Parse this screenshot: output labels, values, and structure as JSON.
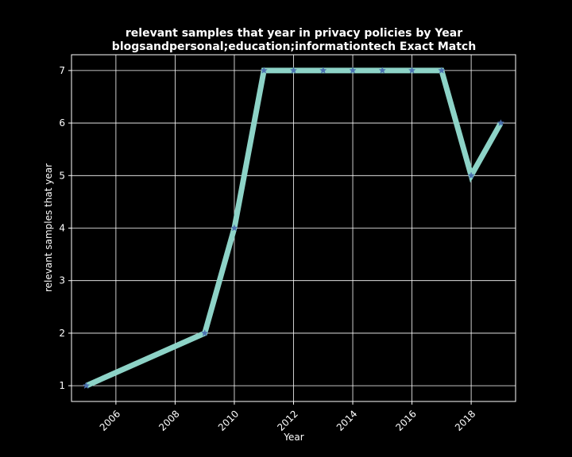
{
  "chart_data": {
    "type": "line",
    "title": "relevant samples that year in privacy policies by Year",
    "subtitle": "blogsandpersonal;education;informationtech Exact Match",
    "xlabel": "Year",
    "ylabel": "relevant samples that year",
    "xlim": [
      2004.5,
      2019.5
    ],
    "ylim": [
      0.7,
      7.3
    ],
    "xticks": [
      2006,
      2008,
      2010,
      2012,
      2014,
      2016,
      2018
    ],
    "yticks": [
      1,
      2,
      3,
      4,
      5,
      6,
      7
    ],
    "grid": true,
    "x": [
      2005,
      2009,
      2010,
      2011,
      2012,
      2013,
      2014,
      2015,
      2016,
      2017,
      2018,
      2019
    ],
    "series": [
      {
        "values": [
          1,
          2,
          4,
          7,
          7,
          7,
          7,
          7,
          7,
          7,
          5,
          6
        ],
        "color": "#8dd3c7",
        "marker_color": "#4c72b0",
        "marker": "star"
      }
    ]
  },
  "colors": {
    "background": "#000000",
    "foreground": "#ffffff"
  }
}
